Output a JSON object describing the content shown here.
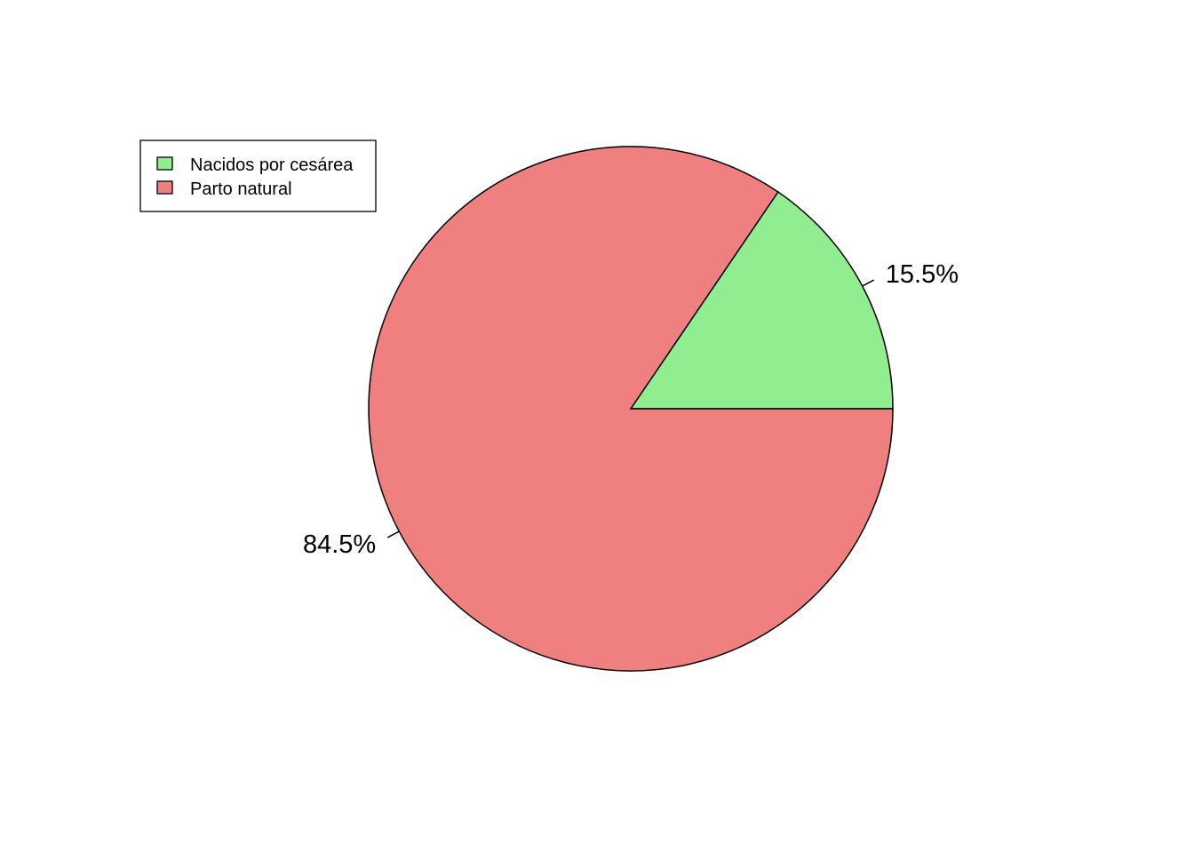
{
  "chart_data": {
    "type": "pie",
    "title": "",
    "categories": [
      "Nacidos por cesárea",
      "Parto natural"
    ],
    "values": [
      15.5,
      84.5
    ],
    "labels": [
      "15.5%",
      "84.5%"
    ],
    "colors": [
      "#90EE90",
      "#F08080"
    ],
    "legend": {
      "position": "top-left",
      "entries": [
        "Nacidos por cesárea",
        "Parto natural"
      ]
    },
    "start_angle_deg": 0,
    "direction": "counterclockwise"
  }
}
